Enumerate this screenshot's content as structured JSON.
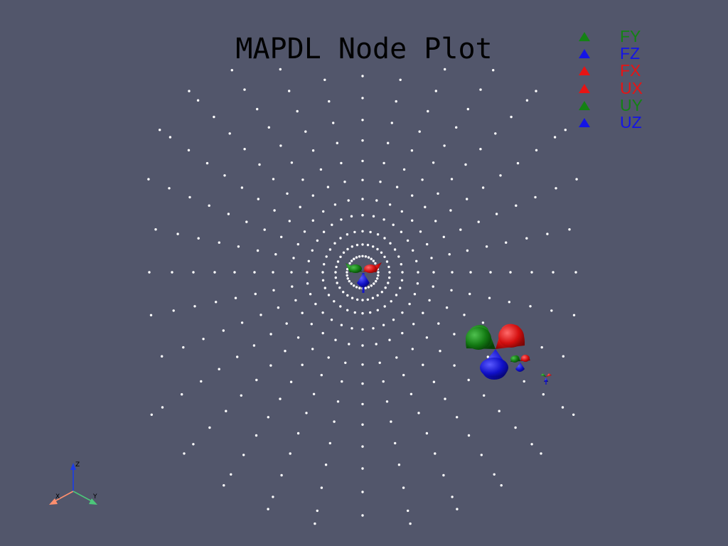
{
  "window": {
    "title": "MAPDL Node Plot",
    "background": "#52566b"
  },
  "legend": {
    "items": [
      {
        "label": "FY",
        "color": "#148214",
        "icon": "triangle-marker"
      },
      {
        "label": "FZ",
        "color": "#1414e6",
        "icon": "triangle-marker"
      },
      {
        "label": "FX",
        "color": "#e61414",
        "icon": "triangle-marker"
      },
      {
        "label": "UX",
        "color": "#e61414",
        "icon": "triangle-marker"
      },
      {
        "label": "UY",
        "color": "#148214",
        "icon": "triangle-marker"
      },
      {
        "label": "UZ",
        "color": "#1414e6",
        "icon": "triangle-marker"
      }
    ]
  },
  "orientation_axes": {
    "labels": [
      "X",
      "Y",
      "Z"
    ],
    "colors": {
      "x": "#ff8f6e",
      "y": "#4cc67a",
      "z": "#1c3ce6"
    }
  },
  "nodes": {
    "color": "#ffffff",
    "shape": "point-cloud"
  },
  "glyph_colors": {
    "fx": "#e61414",
    "fy": "#148214",
    "fz": "#1414e6"
  }
}
